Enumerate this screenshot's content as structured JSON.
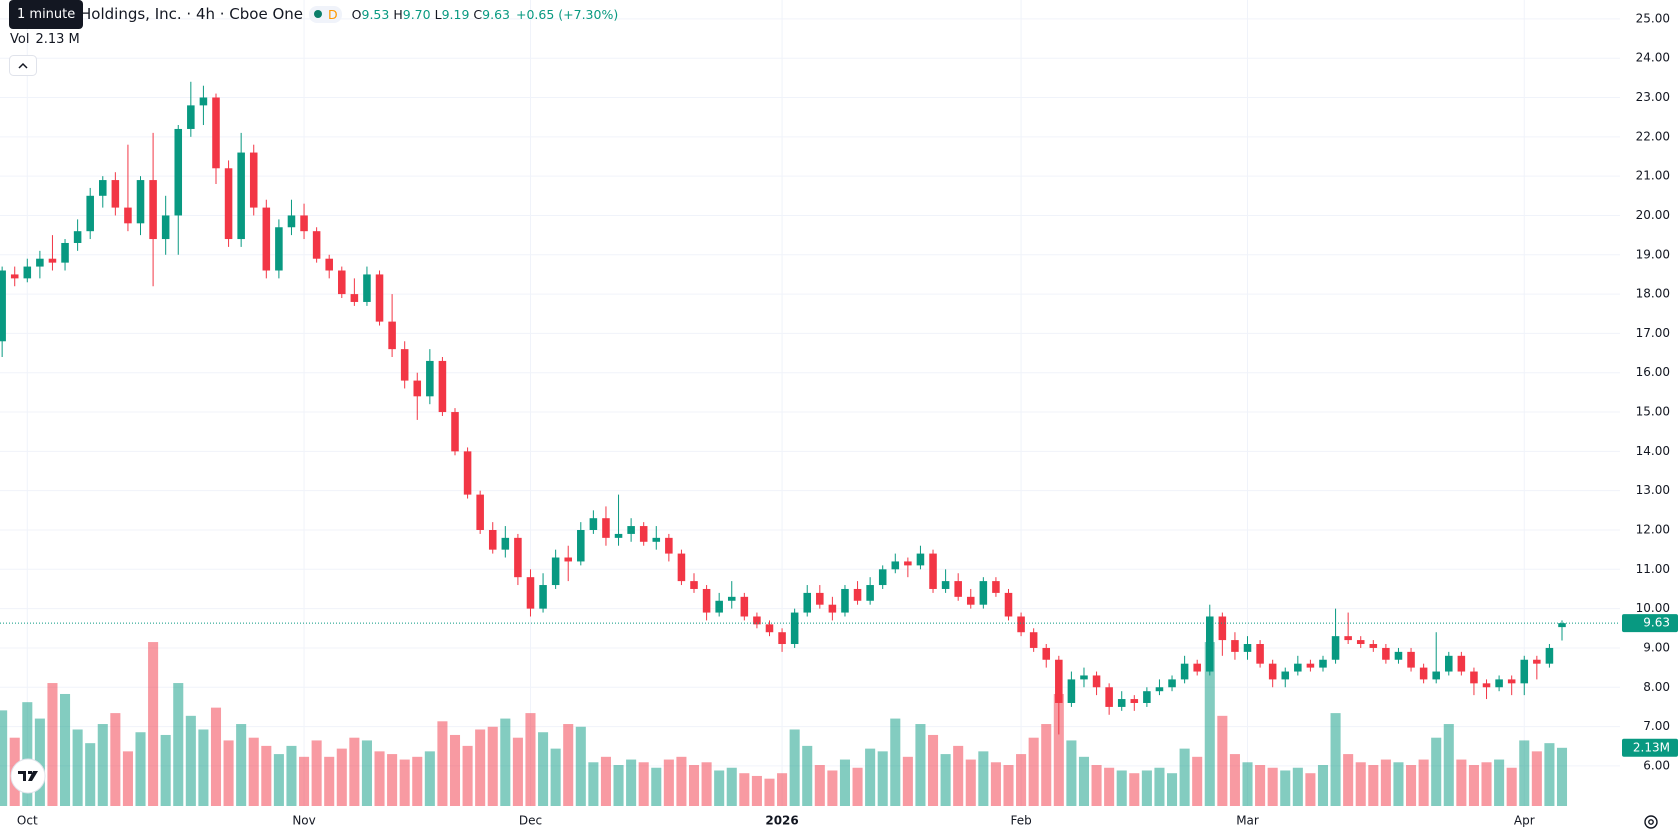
{
  "chart_data": {
    "type": "candlestick",
    "header": {
      "tooltip": "1 minute",
      "symbol": "Holdings, Inc. · 4h · Cboe One",
      "badge": "D",
      "ohlc": [
        {
          "key": "O",
          "value": "9.53"
        },
        {
          "key": "H",
          "value": "9.70"
        },
        {
          "key": "L",
          "value": "9.19"
        },
        {
          "key": "C",
          "value": "9.63"
        }
      ],
      "change": "+0.65 (+7.30%)",
      "volume_label": "Vol",
      "volume_value": "2.13 M"
    },
    "up_color": "#089981",
    "down_color": "#f23645",
    "volume_up_color": "rgba(8,153,129,0.5)",
    "volume_down_color": "rgba(242,54,69,0.5)",
    "grid": true,
    "ylim": [
      4.98,
      25.48
    ],
    "vlim": [
      0,
      29.5
    ],
    "yticks": [
      {
        "value": 6,
        "label": "6.00"
      },
      {
        "value": 7,
        "label": "7.00"
      },
      {
        "value": 8,
        "label": "8.00"
      },
      {
        "value": 9,
        "label": "9.00"
      },
      {
        "value": 10,
        "label": "10.00"
      },
      {
        "value": 11,
        "label": "11.00"
      },
      {
        "value": 12,
        "label": "12.00"
      },
      {
        "value": 13,
        "label": "13.00"
      },
      {
        "value": 14,
        "label": "14.00"
      },
      {
        "value": 15,
        "label": "15.00"
      },
      {
        "value": 16,
        "label": "16.00"
      },
      {
        "value": 17,
        "label": "17.00"
      },
      {
        "value": 18,
        "label": "18.00"
      },
      {
        "value": 19,
        "label": "19.00"
      },
      {
        "value": 20,
        "label": "20.00"
      },
      {
        "value": 21,
        "label": "21.00"
      },
      {
        "value": 22,
        "label": "22.00"
      },
      {
        "value": 23,
        "label": "23.00"
      },
      {
        "value": 24,
        "label": "24.00"
      },
      {
        "value": 25,
        "label": "25.00"
      }
    ],
    "volume_value_label": "2.13M",
    "categories": [
      null,
      null,
      "Oct",
      null,
      null,
      null,
      null,
      null,
      null,
      null,
      null,
      null,
      null,
      null,
      null,
      null,
      null,
      null,
      null,
      null,
      null,
      null,
      null,
      null,
      "Nov",
      null,
      null,
      null,
      null,
      null,
      null,
      null,
      null,
      null,
      null,
      null,
      null,
      null,
      null,
      null,
      null,
      null,
      "Dec",
      null,
      null,
      null,
      null,
      null,
      null,
      null,
      null,
      null,
      null,
      null,
      null,
      null,
      null,
      null,
      null,
      null,
      null,
      null,
      "2026",
      null,
      null,
      null,
      null,
      null,
      null,
      null,
      null,
      null,
      null,
      null,
      null,
      null,
      null,
      null,
      null,
      null,
      null,
      "Feb",
      null,
      null,
      null,
      null,
      null,
      null,
      null,
      null,
      null,
      null,
      null,
      null,
      null,
      null,
      null,
      null,
      null,
      "Mar",
      null,
      null,
      null,
      null,
      null,
      null,
      null,
      null,
      null,
      null,
      null,
      null,
      null,
      null,
      null,
      null,
      null,
      null,
      null,
      null,
      null,
      "Apr",
      null,
      null,
      null
    ],
    "bold_category": "2026",
    "series": [
      {
        "open": [
          16.8,
          18.5,
          18.4,
          18.7,
          18.9,
          18.8,
          19.3,
          19.6,
          20.5,
          20.9,
          20.2,
          19.8,
          20.9,
          19.4,
          20.0,
          22.2,
          22.8,
          23.0,
          21.2,
          19.4,
          21.6,
          20.2,
          18.6,
          19.7,
          20.0,
          19.6,
          18.9,
          18.6,
          18.0,
          17.8,
          18.5,
          17.3,
          16.6,
          15.8,
          15.4,
          16.3,
          15.0,
          14.0,
          12.9,
          12.0,
          11.5,
          11.8,
          10.8,
          10.0,
          10.6,
          11.3,
          11.2,
          12.0,
          12.3,
          11.8,
          11.9,
          12.1,
          11.7,
          11.8,
          11.4,
          10.7,
          10.5,
          9.9,
          10.2,
          10.3,
          9.8,
          9.6,
          9.4,
          9.1,
          9.9,
          10.4,
          10.1,
          9.9,
          10.5,
          10.2,
          10.6,
          11.0,
          11.2,
          11.1,
          11.4,
          10.5,
          10.7,
          10.3,
          10.1,
          10.7,
          10.4,
          9.8,
          9.4,
          9.0,
          8.7,
          7.6,
          8.2,
          8.3,
          8.0,
          7.5,
          7.7,
          7.6,
          7.9,
          8.0,
          8.2,
          8.6,
          8.4,
          9.8,
          9.2,
          8.9,
          9.1,
          8.6,
          8.2,
          8.4,
          8.6,
          8.5,
          8.7,
          9.3,
          9.2,
          9.1,
          9.0,
          8.7,
          8.9,
          8.5,
          8.2,
          8.4,
          8.8,
          8.4,
          8.1,
          8.0,
          8.2,
          8.1,
          8.7,
          8.6,
          9.53
        ],
        "high": [
          18.7,
          18.7,
          18.9,
          19.1,
          19.5,
          19.4,
          19.9,
          20.7,
          21.0,
          21.1,
          21.8,
          21.0,
          22.1,
          20.5,
          22.3,
          23.4,
          23.3,
          23.1,
          21.4,
          22.1,
          21.8,
          20.4,
          19.9,
          20.4,
          20.3,
          19.7,
          19.0,
          18.7,
          18.4,
          18.7,
          18.6,
          18.0,
          16.8,
          16.0,
          16.6,
          16.4,
          15.1,
          14.1,
          13.0,
          12.2,
          12.1,
          11.9,
          11.0,
          10.9,
          11.5,
          11.6,
          12.2,
          12.5,
          12.6,
          12.9,
          12.3,
          12.2,
          12.1,
          11.9,
          11.5,
          10.9,
          10.6,
          10.4,
          10.7,
          10.4,
          9.9,
          9.7,
          9.5,
          10.0,
          10.6,
          10.6,
          10.3,
          10.6,
          10.7,
          10.8,
          11.1,
          11.4,
          11.3,
          11.6,
          11.5,
          11.0,
          10.9,
          10.5,
          10.8,
          10.8,
          10.5,
          9.9,
          9.5,
          9.1,
          8.8,
          8.4,
          8.5,
          8.4,
          8.1,
          7.9,
          7.8,
          8.0,
          8.2,
          8.3,
          8.8,
          8.7,
          10.1,
          9.9,
          9.4,
          9.3,
          9.2,
          8.7,
          8.5,
          8.8,
          8.7,
          8.8,
          10.0,
          9.9,
          9.3,
          9.2,
          9.1,
          9.0,
          9.0,
          8.6,
          9.4,
          8.9,
          8.9,
          8.5,
          8.2,
          8.3,
          8.3,
          8.8,
          8.8,
          9.1,
          9.7
        ],
        "low": [
          16.4,
          18.2,
          18.3,
          18.4,
          18.6,
          18.6,
          19.1,
          19.4,
          20.2,
          20.0,
          19.6,
          19.5,
          18.2,
          19.0,
          19.0,
          22.0,
          22.3,
          20.8,
          19.2,
          19.2,
          20.0,
          18.4,
          18.4,
          19.5,
          19.4,
          18.8,
          18.4,
          17.9,
          17.7,
          17.7,
          17.2,
          16.4,
          15.6,
          14.8,
          15.2,
          14.9,
          13.9,
          12.8,
          11.9,
          11.4,
          11.3,
          10.6,
          9.8,
          9.9,
          10.5,
          10.7,
          11.1,
          11.9,
          11.6,
          11.6,
          11.7,
          11.6,
          11.5,
          11.2,
          10.6,
          10.4,
          9.7,
          9.8,
          10.0,
          9.7,
          9.5,
          9.3,
          8.9,
          9.0,
          9.8,
          10.0,
          9.7,
          9.8,
          10.1,
          10.1,
          10.5,
          10.9,
          10.8,
          11.0,
          10.4,
          10.4,
          10.2,
          10.0,
          10.0,
          10.3,
          9.7,
          9.3,
          8.9,
          8.5,
          6.8,
          7.5,
          8.0,
          7.8,
          7.3,
          7.4,
          7.4,
          7.5,
          7.8,
          7.9,
          8.1,
          8.3,
          8.3,
          8.8,
          8.7,
          8.7,
          8.5,
          8.0,
          8.0,
          8.3,
          8.4,
          8.4,
          8.6,
          9.1,
          9.0,
          8.9,
          8.6,
          8.6,
          8.4,
          8.1,
          8.1,
          8.3,
          8.3,
          7.8,
          7.7,
          7.9,
          7.8,
          7.8,
          8.2,
          8.5,
          9.19
        ],
        "close": [
          18.6,
          18.4,
          18.7,
          18.9,
          18.8,
          19.3,
          19.6,
          20.5,
          20.9,
          20.2,
          19.8,
          20.9,
          19.4,
          20.0,
          22.2,
          22.8,
          23.0,
          21.2,
          19.4,
          21.6,
          20.2,
          18.6,
          19.7,
          20.0,
          19.6,
          18.9,
          18.6,
          18.0,
          17.8,
          18.5,
          17.3,
          16.6,
          15.8,
          15.4,
          16.3,
          15.0,
          14.0,
          12.9,
          12.0,
          11.5,
          11.8,
          10.8,
          10.0,
          10.6,
          11.3,
          11.2,
          12.0,
          12.3,
          11.8,
          11.9,
          12.1,
          11.7,
          11.8,
          11.4,
          10.7,
          10.5,
          9.9,
          10.2,
          10.3,
          9.8,
          9.6,
          9.4,
          9.1,
          9.9,
          10.4,
          10.1,
          9.9,
          10.5,
          10.2,
          10.6,
          11.0,
          11.2,
          11.1,
          11.4,
          10.5,
          10.7,
          10.3,
          10.1,
          10.7,
          10.4,
          9.8,
          9.4,
          9.0,
          8.7,
          7.6,
          8.2,
          8.3,
          8.0,
          7.5,
          7.7,
          7.6,
          7.9,
          8.0,
          8.2,
          8.6,
          8.4,
          9.8,
          9.2,
          8.9,
          9.1,
          8.6,
          8.2,
          8.4,
          8.6,
          8.5,
          8.7,
          9.3,
          9.2,
          9.1,
          9.0,
          8.7,
          8.9,
          8.5,
          8.2,
          8.4,
          8.8,
          8.4,
          8.1,
          8.0,
          8.2,
          8.1,
          8.7,
          8.6,
          9.0,
          9.63
        ],
        "volume": [
          3.5,
          2.5,
          3.8,
          3.2,
          4.5,
          4.1,
          2.8,
          2.3,
          3.0,
          3.4,
          2.0,
          2.7,
          6.0,
          2.6,
          4.5,
          3.3,
          2.8,
          3.6,
          2.4,
          3.0,
          2.5,
          2.2,
          1.9,
          2.2,
          1.8,
          2.4,
          1.8,
          2.1,
          2.5,
          2.4,
          2.0,
          1.9,
          1.7,
          1.8,
          2.0,
          3.1,
          2.6,
          2.2,
          2.8,
          2.9,
          3.2,
          2.5,
          3.4,
          2.7,
          2.1,
          3.0,
          2.9,
          1.6,
          1.8,
          1.5,
          1.7,
          1.6,
          1.4,
          1.7,
          1.8,
          1.5,
          1.6,
          1.3,
          1.4,
          1.2,
          1.1,
          1.0,
          1.2,
          2.8,
          2.2,
          1.5,
          1.3,
          1.7,
          1.4,
          2.1,
          2.0,
          3.2,
          1.8,
          3.0,
          2.6,
          1.9,
          2.2,
          1.7,
          2.0,
          1.6,
          1.5,
          1.9,
          2.5,
          3.0,
          4.1,
          2.4,
          1.8,
          1.5,
          1.4,
          1.3,
          1.2,
          1.3,
          1.4,
          1.2,
          2.1,
          1.8,
          6.0,
          3.3,
          1.9,
          1.6,
          1.5,
          1.4,
          1.3,
          1.4,
          1.2,
          1.5,
          3.4,
          1.9,
          1.6,
          1.5,
          1.7,
          1.6,
          1.5,
          1.7,
          2.5,
          3.0,
          1.7,
          1.5,
          1.6,
          1.7,
          1.4,
          2.4,
          2.0,
          2.3,
          2.13
        ]
      }
    ]
  }
}
